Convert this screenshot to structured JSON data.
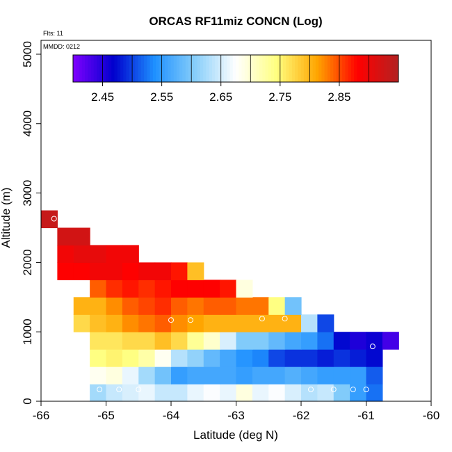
{
  "chart_data": {
    "type": "heatmap",
    "title": "ORCAS RF11miz CONCN (Log)",
    "xlabel": "Latitude (deg N)",
    "ylabel": "Altitude (m)",
    "xlim": [
      -66,
      -60
    ],
    "ylim": [
      0,
      5200
    ],
    "x_ticks": [
      -66,
      -65,
      -64,
      -63,
      -62,
      -61,
      -60
    ],
    "y_ticks": [
      0,
      1000,
      2000,
      3000,
      4000,
      5000
    ],
    "notes": [
      "Flts: 11",
      "MMDD: 0212"
    ],
    "colorbar": {
      "range": [
        2.4,
        2.95
      ],
      "ticks": [
        2.45,
        2.55,
        2.65,
        2.75,
        2.85
      ],
      "stops": [
        "#7F00FF",
        "#0000CD",
        "#1E90FF",
        "#87CEFA",
        "#FFFFFF",
        "#FFFF80",
        "#FFA500",
        "#FF0000",
        "#B22222"
      ]
    },
    "lat_bin_width": 0.25,
    "alt_bin_height": 250,
    "rows": [
      {
        "alt": 125,
        "lat_start": -65.25,
        "values": [
          2.6225,
          2.6425,
          2.6525,
          2.6625,
          2.6425,
          2.6425,
          2.6625,
          2.6725,
          2.6625,
          2.6925,
          2.6625,
          2.6725,
          2.6525,
          2.6325,
          2.6425,
          2.6025,
          2.5525,
          2.5225
        ]
      },
      {
        "alt": 375,
        "lat_start": -65.25,
        "values": [
          2.6825,
          2.6925,
          2.6625,
          2.6225,
          2.5925,
          2.5525,
          2.5625,
          2.5625,
          2.5625,
          2.5525,
          2.5625,
          2.5625,
          2.5725,
          2.5625,
          2.5525,
          2.5525,
          2.5525,
          2.5125
        ]
      },
      {
        "alt": 625,
        "lat_start": -65.25,
        "values": [
          2.7425,
          2.7525,
          2.7425,
          2.7225,
          2.6825,
          2.6325,
          2.6125,
          2.5825,
          2.5625,
          2.5425,
          2.5325,
          2.5025,
          2.4925,
          2.4925,
          2.4825,
          2.4925,
          2.4825,
          2.4725
        ]
      },
      {
        "alt": 875,
        "lat_start": -65.25,
        "values": [
          2.7625,
          2.7625,
          2.7725,
          2.7725,
          2.7925,
          2.7725,
          2.7325,
          2.7025,
          2.6525,
          2.6025,
          2.6025,
          2.5825,
          2.5625,
          2.5525,
          2.5225,
          2.4725,
          2.4525,
          2.4625,
          2.4325
        ]
      },
      {
        "alt": 1125,
        "lat_start": -65.5,
        "values": [
          2.7725,
          2.7925,
          2.8025,
          2.8225,
          2.8325,
          2.8425,
          2.8225,
          2.8125,
          2.8025,
          2.8025,
          2.8025,
          2.8025,
          2.8025,
          2.8025,
          2.6325,
          2.5025
        ]
      },
      {
        "alt": 1375,
        "lat_start": -65.5,
        "values": [
          2.8025,
          2.8025,
          2.8225,
          2.8425,
          2.8525,
          2.8625,
          2.8425,
          2.8325,
          2.8425,
          2.8425,
          2.8325,
          2.8325,
          2.7425,
          2.5925
        ]
      },
      {
        "alt": 1625,
        "lat_start": -65.25,
        "values": [
          2.8425,
          2.8625,
          2.8725,
          2.8625,
          2.8725,
          2.8825,
          2.8825,
          2.8825,
          2.8725,
          2.6925
        ]
      },
      {
        "alt": 1875,
        "lat_start": -65.75,
        "values": [
          2.8825,
          2.8825,
          2.8925,
          2.8925,
          2.8825,
          2.8925,
          2.8925,
          2.8725,
          2.7925
        ]
      },
      {
        "alt": 2125,
        "lat_start": -65.75,
        "values": [
          2.8925,
          2.9025,
          2.9025,
          2.8925,
          2.8925
        ]
      },
      {
        "alt": 2375,
        "lat_start": -65.75,
        "values": [
          2.9225,
          2.9225
        ]
      },
      {
        "alt": 2625,
        "lat_start": -66.0,
        "values": [
          2.9325
        ]
      }
    ],
    "markers": [
      {
        "lat": -65.1,
        "alt": 170
      },
      {
        "lat": -64.8,
        "alt": 170
      },
      {
        "lat": -64.5,
        "alt": 170
      },
      {
        "lat": -61.85,
        "alt": 170
      },
      {
        "lat": -61.5,
        "alt": 170
      },
      {
        "lat": -61.2,
        "alt": 170
      },
      {
        "lat": -61.0,
        "alt": 170
      },
      {
        "lat": -64.0,
        "alt": 1170
      },
      {
        "lat": -63.7,
        "alt": 1170
      },
      {
        "lat": -62.6,
        "alt": 1190
      },
      {
        "lat": -62.25,
        "alt": 1190
      },
      {
        "lat": -60.9,
        "alt": 790
      },
      {
        "lat": -65.8,
        "alt": 2630
      }
    ]
  }
}
